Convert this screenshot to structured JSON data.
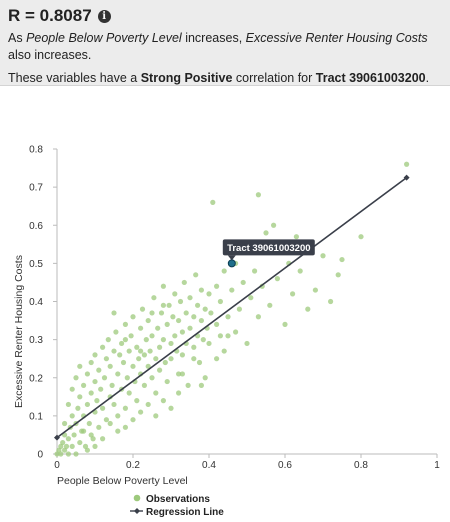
{
  "summary": {
    "r_value": "R = 0.8087",
    "line1_pre": "As ",
    "line1_x": "People Below Poverty Level",
    "line1_mid": " increases, ",
    "line1_y": "Excessive Renter Housing Costs",
    "line1_post": " also increases.",
    "line2_pre": "These variables have a ",
    "line2_strength": "Strong Positive",
    "line2_mid": " correlation for ",
    "line2_tract": "Tract 39061003200",
    "line2_post": "."
  },
  "chart_data": {
    "type": "scatter",
    "xlabel": "People Below Poverty Level",
    "ylabel": "Excessive Renter Housing Costs",
    "xlim": [
      0,
      1
    ],
    "ylim": [
      0,
      0.8
    ],
    "x_ticks": [
      "0",
      "0.2",
      "0.4",
      "0.6",
      "0.8",
      "1"
    ],
    "y_ticks": [
      "0",
      "0.1",
      "0.2",
      "0.3",
      "0.4",
      "0.5",
      "0.6",
      "0.7",
      "0.8"
    ],
    "observation_color": "#9dc97c",
    "highlight_color": "#1f6f8b",
    "regression_color": "#3a3f4a",
    "series": [
      {
        "name": "Observations",
        "points": [
          [
            0.0,
            0.0
          ],
          [
            0.005,
            0.01
          ],
          [
            0.01,
            0.02
          ],
          [
            0.01,
            0.0
          ],
          [
            0.015,
            0.03
          ],
          [
            0.02,
            0.01
          ],
          [
            0.02,
            0.05
          ],
          [
            0.025,
            0.02
          ],
          [
            0.03,
            0.0
          ],
          [
            0.03,
            0.04
          ],
          [
            0.035,
            0.07
          ],
          [
            0.04,
            0.02
          ],
          [
            0.04,
            0.1
          ],
          [
            0.045,
            0.05
          ],
          [
            0.05,
            0.0
          ],
          [
            0.05,
            0.08
          ],
          [
            0.055,
            0.12
          ],
          [
            0.06,
            0.03
          ],
          [
            0.06,
            0.15
          ],
          [
            0.065,
            0.06
          ],
          [
            0.07,
            0.1
          ],
          [
            0.07,
            0.18
          ],
          [
            0.075,
            0.02
          ],
          [
            0.08,
            0.13
          ],
          [
            0.08,
            0.21
          ],
          [
            0.085,
            0.08
          ],
          [
            0.09,
            0.16
          ],
          [
            0.09,
            0.24
          ],
          [
            0.095,
            0.04
          ],
          [
            0.1,
            0.11
          ],
          [
            0.1,
            0.19
          ],
          [
            0.1,
            0.26
          ],
          [
            0.105,
            0.14
          ],
          [
            0.11,
            0.07
          ],
          [
            0.11,
            0.22
          ],
          [
            0.115,
            0.17
          ],
          [
            0.12,
            0.28
          ],
          [
            0.12,
            0.12
          ],
          [
            0.125,
            0.2
          ],
          [
            0.13,
            0.25
          ],
          [
            0.13,
            0.09
          ],
          [
            0.135,
            0.3
          ],
          [
            0.14,
            0.15
          ],
          [
            0.14,
            0.23
          ],
          [
            0.145,
            0.18
          ],
          [
            0.15,
            0.27
          ],
          [
            0.15,
            0.13
          ],
          [
            0.155,
            0.32
          ],
          [
            0.16,
            0.21
          ],
          [
            0.16,
            0.06
          ],
          [
            0.165,
            0.26
          ],
          [
            0.17,
            0.17
          ],
          [
            0.17,
            0.29
          ],
          [
            0.175,
            0.24
          ],
          [
            0.18,
            0.12
          ],
          [
            0.18,
            0.34
          ],
          [
            0.185,
            0.2
          ],
          [
            0.19,
            0.27
          ],
          [
            0.19,
            0.16
          ],
          [
            0.195,
            0.31
          ],
          [
            0.2,
            0.23
          ],
          [
            0.2,
            0.36
          ],
          [
            0.205,
            0.19
          ],
          [
            0.21,
            0.28
          ],
          [
            0.21,
            0.14
          ],
          [
            0.215,
            0.25
          ],
          [
            0.22,
            0.33
          ],
          [
            0.22,
            0.21
          ],
          [
            0.225,
            0.38
          ],
          [
            0.23,
            0.26
          ],
          [
            0.23,
            0.18
          ],
          [
            0.235,
            0.3
          ],
          [
            0.24,
            0.23
          ],
          [
            0.24,
            0.35
          ],
          [
            0.245,
            0.27
          ],
          [
            0.25,
            0.2
          ],
          [
            0.25,
            0.31
          ],
          [
            0.255,
            0.41
          ],
          [
            0.26,
            0.25
          ],
          [
            0.26,
            0.16
          ],
          [
            0.265,
            0.33
          ],
          [
            0.27,
            0.28
          ],
          [
            0.27,
            0.22
          ],
          [
            0.275,
            0.37
          ],
          [
            0.28,
            0.3
          ],
          [
            0.28,
            0.44
          ],
          [
            0.285,
            0.24
          ],
          [
            0.29,
            0.34
          ],
          [
            0.29,
            0.19
          ],
          [
            0.295,
            0.39
          ],
          [
            0.3,
            0.29
          ],
          [
            0.3,
            0.25
          ],
          [
            0.305,
            0.36
          ],
          [
            0.31,
            0.31
          ],
          [
            0.31,
            0.42
          ],
          [
            0.315,
            0.27
          ],
          [
            0.32,
            0.35
          ],
          [
            0.32,
            0.21
          ],
          [
            0.325,
            0.4
          ],
          [
            0.33,
            0.32
          ],
          [
            0.33,
            0.26
          ],
          [
            0.335,
            0.45
          ],
          [
            0.34,
            0.37
          ],
          [
            0.34,
            0.29
          ],
          [
            0.345,
            0.18
          ],
          [
            0.35,
            0.33
          ],
          [
            0.35,
            0.41
          ],
          [
            0.36,
            0.28
          ],
          [
            0.36,
            0.36
          ],
          [
            0.365,
            0.47
          ],
          [
            0.37,
            0.31
          ],
          [
            0.37,
            0.39
          ],
          [
            0.375,
            0.24
          ],
          [
            0.38,
            0.35
          ],
          [
            0.38,
            0.43
          ],
          [
            0.385,
            0.3
          ],
          [
            0.39,
            0.38
          ],
          [
            0.39,
            0.2
          ],
          [
            0.395,
            0.33
          ],
          [
            0.4,
            0.42
          ],
          [
            0.4,
            0.29
          ],
          [
            0.405,
            0.37
          ],
          [
            0.41,
            0.66
          ],
          [
            0.42,
            0.34
          ],
          [
            0.42,
            0.44
          ],
          [
            0.43,
            0.31
          ],
          [
            0.43,
            0.4
          ],
          [
            0.44,
            0.48
          ],
          [
            0.44,
            0.27
          ],
          [
            0.45,
            0.36
          ],
          [
            0.46,
            0.43
          ],
          [
            0.47,
            0.32
          ],
          [
            0.47,
            0.5
          ],
          [
            0.48,
            0.38
          ],
          [
            0.49,
            0.45
          ],
          [
            0.5,
            0.29
          ],
          [
            0.5,
            0.55
          ],
          [
            0.51,
            0.41
          ],
          [
            0.52,
            0.48
          ],
          [
            0.53,
            0.36
          ],
          [
            0.53,
            0.68
          ],
          [
            0.54,
            0.44
          ],
          [
            0.55,
            0.58
          ],
          [
            0.56,
            0.39
          ],
          [
            0.57,
            0.6
          ],
          [
            0.58,
            0.46
          ],
          [
            0.59,
            0.55
          ],
          [
            0.6,
            0.34
          ],
          [
            0.61,
            0.5
          ],
          [
            0.62,
            0.42
          ],
          [
            0.63,
            0.57
          ],
          [
            0.64,
            0.48
          ],
          [
            0.66,
            0.38
          ],
          [
            0.68,
            0.43
          ],
          [
            0.7,
            0.52
          ],
          [
            0.72,
            0.4
          ],
          [
            0.74,
            0.47
          ],
          [
            0.75,
            0.51
          ],
          [
            0.8,
            0.57
          ],
          [
            0.92,
            0.76
          ],
          [
            0.02,
            0.08
          ],
          [
            0.03,
            0.13
          ],
          [
            0.04,
            0.17
          ],
          [
            0.05,
            0.2
          ],
          [
            0.06,
            0.23
          ],
          [
            0.07,
            0.06
          ],
          [
            0.08,
            0.01
          ],
          [
            0.09,
            0.05
          ],
          [
            0.1,
            0.02
          ],
          [
            0.12,
            0.04
          ],
          [
            0.14,
            0.08
          ],
          [
            0.16,
            0.1
          ],
          [
            0.18,
            0.07
          ],
          [
            0.2,
            0.09
          ],
          [
            0.22,
            0.11
          ],
          [
            0.24,
            0.13
          ],
          [
            0.26,
            0.1
          ],
          [
            0.28,
            0.14
          ],
          [
            0.3,
            0.12
          ],
          [
            0.32,
            0.16
          ],
          [
            0.15,
            0.37
          ],
          [
            0.18,
            0.3
          ],
          [
            0.22,
            0.27
          ],
          [
            0.25,
            0.37
          ],
          [
            0.28,
            0.39
          ],
          [
            0.33,
            0.21
          ],
          [
            0.36,
            0.25
          ],
          [
            0.38,
            0.18
          ],
          [
            0.42,
            0.25
          ],
          [
            0.45,
            0.31
          ]
        ]
      },
      {
        "name": "Regression Line",
        "points": [
          [
            0.0,
            0.043
          ],
          [
            0.92,
            0.725
          ]
        ]
      }
    ],
    "highlight": {
      "label": "Tract 39061003200",
      "x": 0.46,
      "y": 0.5
    },
    "legend": {
      "placement": "bottom-center",
      "observations": "Observations",
      "regression": "Regression Line"
    }
  }
}
